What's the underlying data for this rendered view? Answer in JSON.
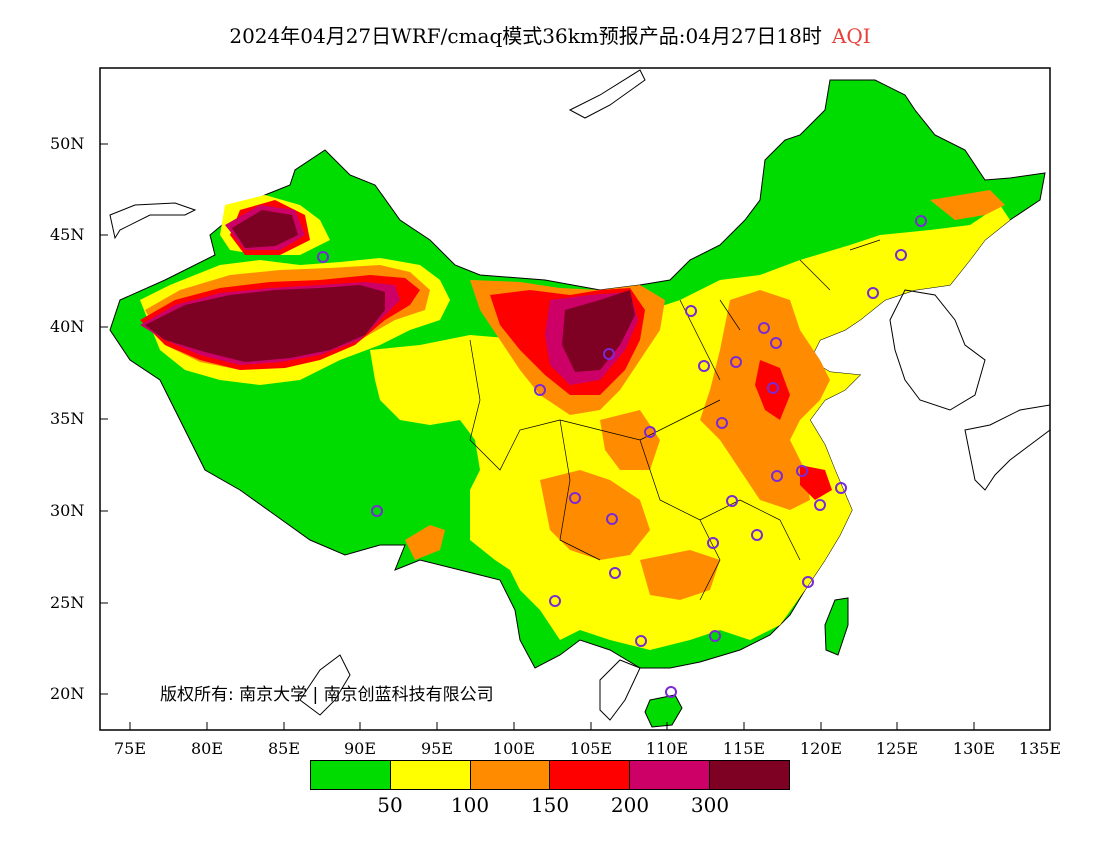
{
  "title": {
    "main": "2024年04月27日WRF/cmaq模式36km预报产品:04月27日18时",
    "product": "AQI"
  },
  "copyright": "版权所有: 南京大学 | 南京创蓝科技有限公司",
  "y_axis": [
    "50N",
    "45N",
    "40N",
    "35N",
    "30N",
    "25N",
    "20N"
  ],
  "x_axis": [
    "75E",
    "80E",
    "85E",
    "90E",
    "95E",
    "100E",
    "105E",
    "110E",
    "115E",
    "120E",
    "125E",
    "130E",
    "135E"
  ],
  "legend": {
    "colors": [
      "#00dc00",
      "#ffff00",
      "#ff8c00",
      "#ff0000",
      "#cc0066",
      "#7e0023"
    ],
    "labels": [
      "50",
      "100",
      "150",
      "200",
      "300"
    ]
  }
}
